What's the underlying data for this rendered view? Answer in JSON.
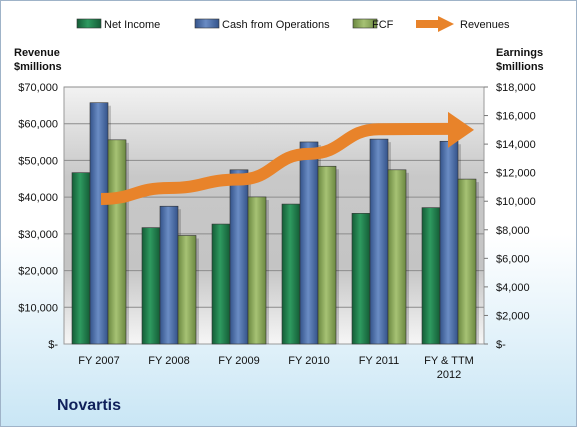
{
  "company": "Novartis",
  "chart_data": {
    "type": "bar",
    "categories": [
      "FY 2007",
      "FY 2008",
      "FY 2009",
      "FY 2010",
      "FY 2011",
      "FY & TTM|2012"
    ],
    "left_axis": {
      "title_lines": [
        "Revenue",
        "$millions"
      ],
      "ylim": [
        0,
        70000
      ],
      "tick_labels": [
        "$-",
        "$10,000",
        "$20,000",
        "$30,000",
        "$40,000",
        "$50,000",
        "$60,000",
        "$70,000"
      ]
    },
    "right_axis": {
      "title_lines": [
        "Earnings",
        "$millions"
      ],
      "ylim": [
        0,
        18000
      ],
      "tick_labels": [
        "$-",
        "$2,000",
        "$4,000",
        "$6,000",
        "$8,000",
        "$10,000",
        "$12,000",
        "$14,000",
        "$16,000",
        "$18,000"
      ]
    },
    "series": [
      {
        "name": "Net Income",
        "axis": "right",
        "kind": "bar",
        "color": "#1f7a4a",
        "values": [
          12000,
          8150,
          8400,
          9800,
          9150,
          9550
        ]
      },
      {
        "name": "Cash from Operations",
        "axis": "right",
        "kind": "bar",
        "color": "#4a6fa8",
        "values": [
          16900,
          9650,
          12200,
          14150,
          14350,
          14200
        ]
      },
      {
        "name": "FCF",
        "axis": "right",
        "kind": "bar",
        "color": "#8aa85a",
        "values": [
          14300,
          7600,
          10300,
          12450,
          12200,
          11550
        ]
      },
      {
        "name": "Revenues",
        "axis": "left",
        "kind": "arrow-line",
        "color": "#e8832a",
        "values": [
          39500,
          42500,
          44800,
          51800,
          58500,
          58600
        ]
      }
    ],
    "legend_position": "top",
    "grid": true,
    "plot_background": "gradient grey"
  }
}
